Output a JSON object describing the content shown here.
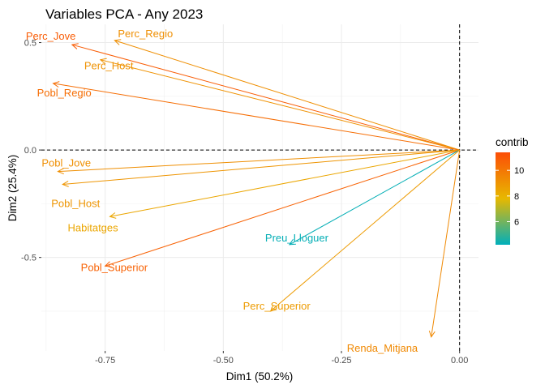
{
  "chart_data": {
    "type": "scatter",
    "subtype": "pca-variable-arrows",
    "title": "Variables PCA - Any 2023",
    "xlabel": "Dim1 (50.2%)",
    "ylabel": "Dim2 (25.4%)",
    "xlim": [
      -0.885,
      0.04
    ],
    "ylim": [
      -0.935,
      0.585
    ],
    "x_ticks": [
      -0.75,
      -0.5,
      -0.25,
      0.0
    ],
    "x_tick_labels": [
      "-0.75",
      "-0.50",
      "-0.25",
      "0.00"
    ],
    "y_ticks": [
      0.5,
      0.0,
      -0.5
    ],
    "y_tick_labels": [
      "0.5",
      "0.0",
      "-0.5"
    ],
    "grid": true,
    "reference_lines": {
      "x": 0,
      "y": 0,
      "style": "dashed"
    },
    "legend": {
      "title": "contrib",
      "placement": "right",
      "min": 4.2,
      "max": 11.4,
      "ticks": [
        6,
        8,
        10
      ],
      "tick_labels": [
        "6",
        "8",
        "10"
      ],
      "colors": [
        "#00AFBB",
        "#E7B800",
        "#FC4E07"
      ]
    },
    "variables": [
      {
        "name": "Perc_Jove",
        "x": -0.82,
        "y": 0.49,
        "contrib": 10.9
      },
      {
        "name": "Perc_Regio",
        "x": -0.73,
        "y": 0.51,
        "contrib": 9.2
      },
      {
        "name": "Perc_Host",
        "x": -0.76,
        "y": 0.42,
        "contrib": 9.1
      },
      {
        "name": "Pobl_Regio",
        "x": -0.86,
        "y": 0.31,
        "contrib": 10.3
      },
      {
        "name": "Pobl_Jove",
        "x": -0.85,
        "y": -0.1,
        "contrib": 9.2
      },
      {
        "name": "Pobl_Host",
        "x": -0.84,
        "y": -0.16,
        "contrib": 9.0
      },
      {
        "name": "Habitatges",
        "x": -0.74,
        "y": -0.31,
        "contrib": 8.4
      },
      {
        "name": "Pobl_Superior",
        "x": -0.75,
        "y": -0.54,
        "contrib": 10.7
      },
      {
        "name": "Preu_Lloguer",
        "x": -0.36,
        "y": -0.44,
        "contrib": 4.3
      },
      {
        "name": "Perc_Superior",
        "x": -0.4,
        "y": -0.75,
        "contrib": 8.8
      },
      {
        "name": "Renda_Mitjana",
        "x": -0.06,
        "y": -0.87,
        "contrib": 9.4
      }
    ]
  }
}
